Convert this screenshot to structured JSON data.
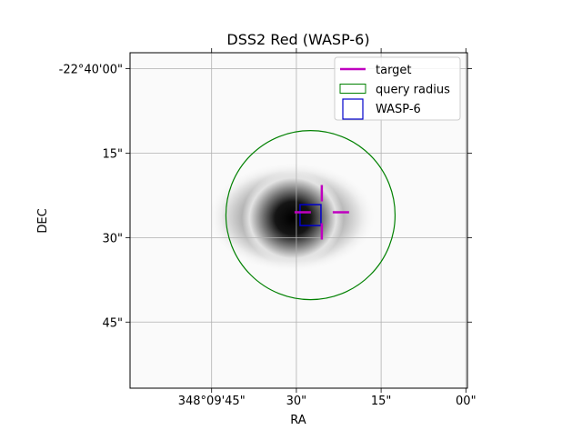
{
  "chart_data": {
    "type": "image-plot",
    "title": "DSS2 Red (WASP-6)",
    "xlabel": "RA",
    "ylabel": "DEC",
    "x_ticks": [
      {
        "label": "348°09'45\"",
        "ra_arcsec": 45
      },
      {
        "label": "30\"",
        "ra_arcsec": 30
      },
      {
        "label": "15\"",
        "ra_arcsec": 15
      },
      {
        "label": "00\"",
        "ra_arcsec": 0
      }
    ],
    "y_ticks": [
      {
        "label": "-22°40'00\"",
        "dec_arcsec": 0
      },
      {
        "label": "15\"",
        "dec_arcsec": 15
      },
      {
        "label": "30\"",
        "dec_arcsec": 30
      },
      {
        "label": "45\"",
        "dec_arcsec": 45
      }
    ],
    "grid": true,
    "legend": {
      "placement": "top-right",
      "entries": [
        {
          "label": "target",
          "style": "line",
          "color": "#bf00bf"
        },
        {
          "label": "query radius",
          "style": "circle",
          "color": "#008000"
        },
        {
          "label": "WASP-6",
          "style": "square",
          "color": "#0000cc"
        }
      ]
    },
    "target_marker": {
      "ra_arcsec": 25.5,
      "dec_arcsec": 25.5,
      "color": "#bf00bf"
    },
    "query_circle": {
      "ra_arcsec": 27.5,
      "dec_arcsec": 26.0,
      "radius_arcsec": 15,
      "color": "#008000"
    },
    "source_marker": {
      "ra_arcsec": 27.5,
      "dec_arcsec": 26.0,
      "color": "#0000cc"
    }
  }
}
